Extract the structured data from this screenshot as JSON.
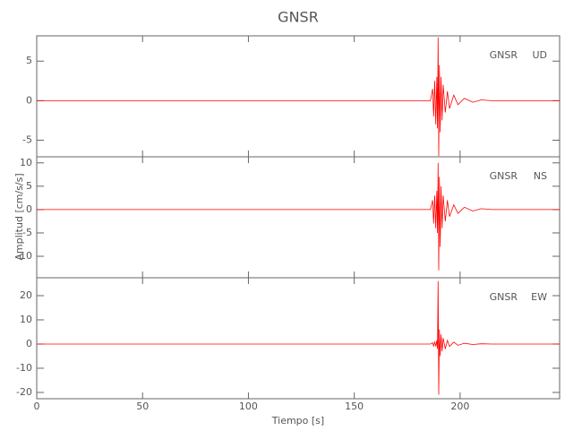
{
  "title": "GNSR",
  "x_label": "Tiempo [s]",
  "y_label": "Amplitud [cm/s/s]",
  "chart_data": [
    {
      "type": "line",
      "station": "GNSR",
      "component": "UD",
      "color": "#ff0000",
      "x": [
        0,
        186,
        187,
        187.5,
        188,
        188.5,
        189,
        189.3,
        189.6,
        189.9,
        190.2,
        190.6,
        191,
        191.5,
        192,
        193,
        194,
        195,
        197,
        199,
        202,
        206,
        210,
        215,
        247
      ],
      "values": [
        0,
        0,
        1.5,
        -2,
        2.5,
        -3,
        3,
        -3.5,
        8,
        -7,
        4.5,
        -4,
        3,
        -2.5,
        2,
        -1.5,
        1.2,
        -1,
        0.7,
        -0.5,
        0.3,
        -0.2,
        0.1,
        0,
        0
      ],
      "xlim": [
        0,
        247
      ],
      "xticks": [
        0,
        50,
        100,
        150,
        200
      ],
      "ylim": [
        -7.1,
        8.2
      ],
      "yticks": [
        -5,
        0,
        5
      ]
    },
    {
      "type": "line",
      "station": "GNSR",
      "component": "NS",
      "color": "#ff0000",
      "x": [
        0,
        186,
        187,
        187.5,
        188,
        188.5,
        189,
        189.3,
        189.6,
        189.9,
        190.2,
        190.6,
        191,
        191.5,
        192,
        193,
        194,
        195,
        197,
        199,
        202,
        206,
        210,
        215,
        247
      ],
      "values": [
        0,
        0,
        2,
        -3,
        3,
        -4,
        4,
        -5,
        10,
        -13,
        7,
        -8,
        5,
        -4,
        3,
        -2.5,
        2,
        -1.5,
        1,
        -0.8,
        0.5,
        -0.3,
        0.2,
        0,
        0
      ],
      "xlim": [
        0,
        247
      ],
      "xticks": [
        0,
        50,
        100,
        150,
        200
      ],
      "ylim": [
        -14.6,
        11.3
      ],
      "yticks": [
        -10,
        -5,
        0,
        5,
        10
      ]
    },
    {
      "type": "line",
      "station": "GNSR",
      "component": "EW",
      "color": "#ff0000",
      "x": [
        0,
        186,
        187,
        187.5,
        188,
        188.5,
        189,
        189.3,
        189.6,
        189.9,
        190.2,
        190.6,
        191,
        191.5,
        192,
        193,
        194,
        195,
        197,
        199,
        202,
        206,
        210,
        215,
        247
      ],
      "values": [
        0,
        0,
        0.5,
        -0.8,
        1,
        -1,
        1.5,
        -2,
        26,
        -21,
        6,
        -5,
        4,
        -3,
        2.5,
        -2,
        1.5,
        -1,
        0.8,
        -0.5,
        0.3,
        -0.2,
        0.1,
        0,
        0
      ],
      "xlim": [
        0,
        247
      ],
      "xticks": [
        0,
        50,
        100,
        150,
        200
      ],
      "ylim": [
        -22.6,
        27.4
      ],
      "yticks": [
        -20,
        -10,
        0,
        10,
        20
      ]
    }
  ]
}
